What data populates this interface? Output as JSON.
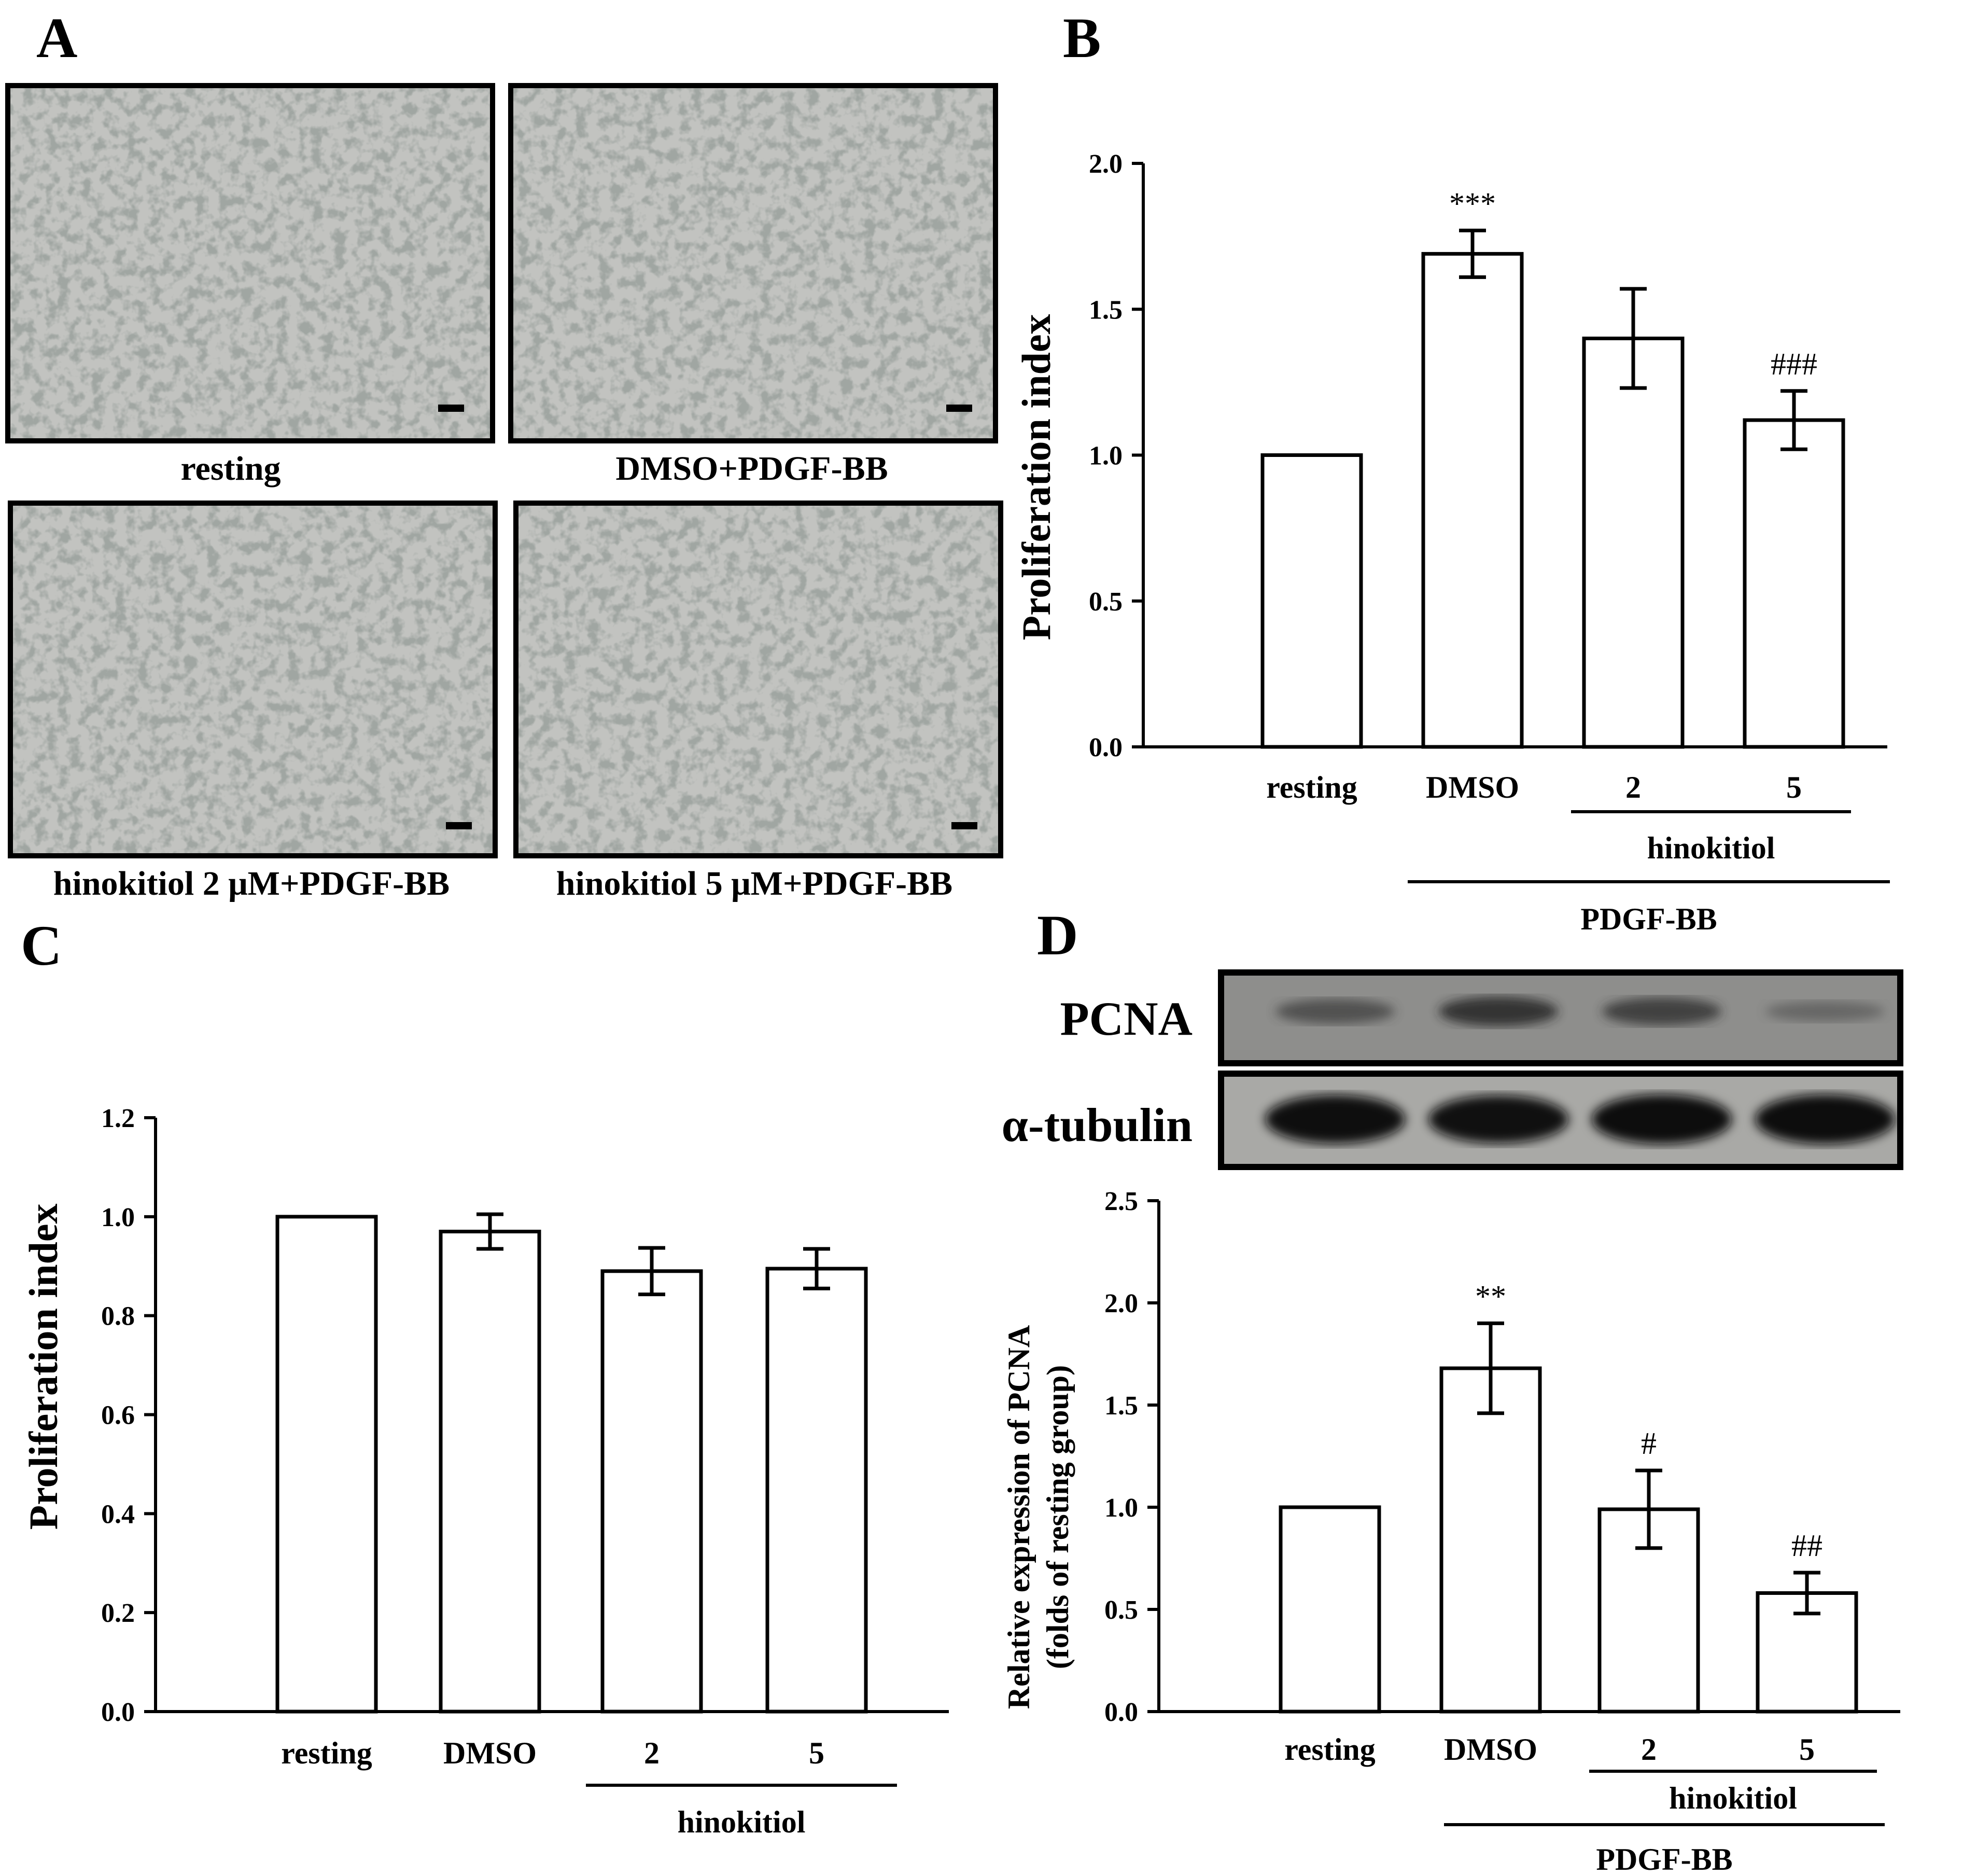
{
  "panel_labels": [
    "A",
    "B",
    "C",
    "D"
  ],
  "panel_a": {
    "captions": [
      "resting",
      "DMSO+PDGF-BB",
      "hinokitiol 2 μM+PDGF-BB",
      "hinokitiol 5 μM+PDGF-BB"
    ]
  },
  "blot": {
    "labels": [
      "PCNA",
      "α-tubulin"
    ],
    "pcna_band_intensity": [
      0.55,
      0.8,
      0.7,
      0.3
    ],
    "tubulin_band_intensity": [
      0.95,
      0.9,
      1.0,
      1.0
    ]
  },
  "colors": {
    "bar_fill": "#ffffff",
    "stroke": "#000000",
    "micro_bg": "#c2c3c0"
  },
  "chart_data": [
    {
      "type": "bar",
      "panel": "B",
      "categories": [
        "resting",
        "DMSO",
        "2",
        "5"
      ],
      "values": [
        1.0,
        1.69,
        1.4,
        1.12
      ],
      "errors": [
        0,
        0.08,
        0.17,
        0.1
      ],
      "significance": [
        "",
        "***",
        "",
        "###"
      ],
      "ylabel": "Proliferation index",
      "ylim": [
        0,
        2.0
      ],
      "yticks": [
        "0.0",
        "0.5",
        "1.0",
        "1.5",
        "2.0"
      ],
      "group_labels": [
        "hinokitiol",
        "PDGF-BB"
      ]
    },
    {
      "type": "bar",
      "panel": "C",
      "categories": [
        "resting",
        "DMSO",
        "2",
        "5"
      ],
      "values": [
        1.0,
        0.97,
        0.89,
        0.895
      ],
      "errors": [
        0,
        0.035,
        0.047,
        0.04
      ],
      "significance": [
        "",
        "",
        "",
        ""
      ],
      "ylabel": "Proliferation index",
      "ylim": [
        0,
        1.2
      ],
      "yticks": [
        "0.0",
        "0.2",
        "0.4",
        "0.6",
        "0.8",
        "1.0",
        "1.2"
      ],
      "group_labels": [
        "hinokitiol"
      ]
    },
    {
      "type": "bar",
      "panel": "D",
      "categories": [
        "resting",
        "DMSO",
        "2",
        "5"
      ],
      "values": [
        1.0,
        1.68,
        0.99,
        0.58
      ],
      "errors": [
        0,
        0.22,
        0.19,
        0.1
      ],
      "significance": [
        "",
        "**",
        "#",
        "##"
      ],
      "ylabel": [
        "Relative expression of PCNA",
        "(folds of resting group)"
      ],
      "ylim": [
        0,
        2.5
      ],
      "yticks": [
        "0.0",
        "0.5",
        "1.0",
        "1.5",
        "2.0",
        "2.5"
      ],
      "group_labels": [
        "hinokitiol",
        "PDGF-BB"
      ]
    }
  ]
}
